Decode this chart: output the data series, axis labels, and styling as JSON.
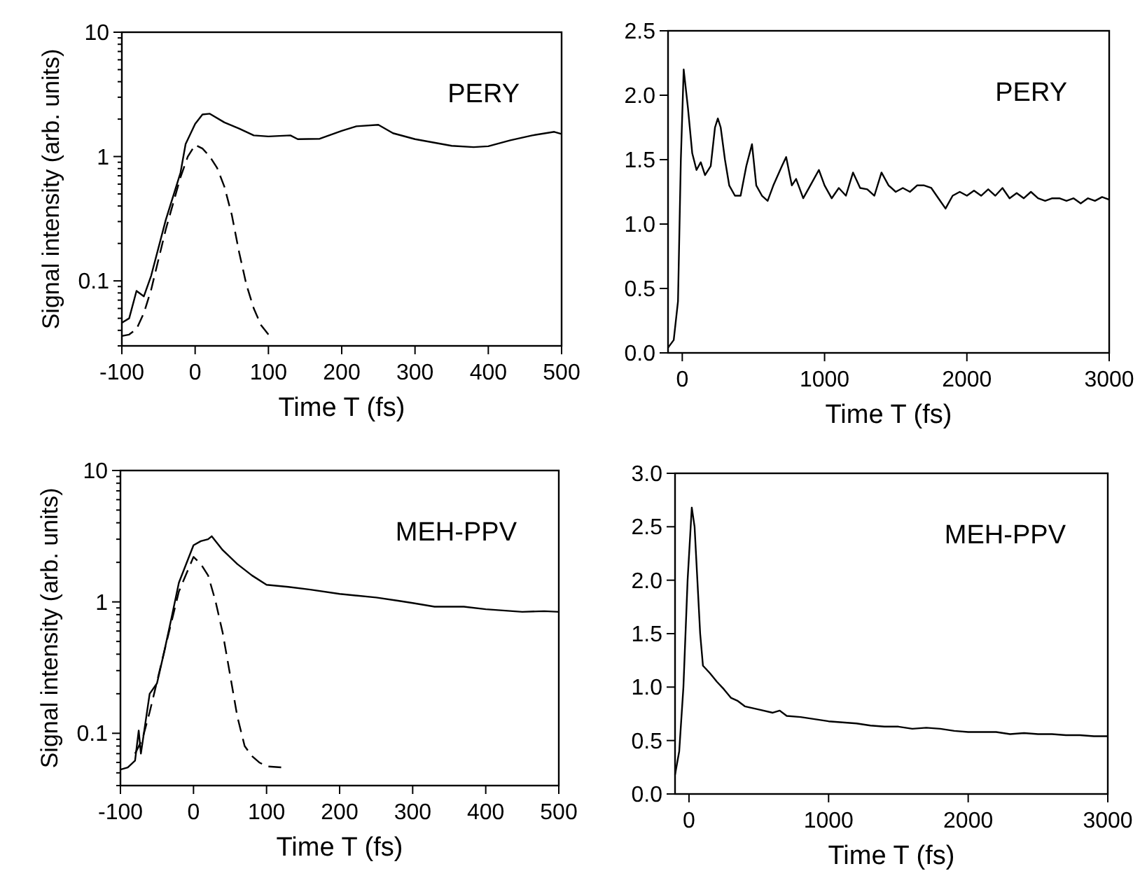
{
  "chart_data": [
    {
      "type": "line",
      "xlabel": "Time T (fs)",
      "ylabel": "Signal intensity  (arb. units)",
      "annotations": [
        "PERY"
      ],
      "log": "y",
      "xlim": [
        -100,
        500
      ],
      "xticks": [
        -100,
        0,
        100,
        200,
        300,
        400,
        500
      ],
      "ylim": [
        0.03,
        10
      ],
      "yticks": [
        {
          "value": 0.03,
          "label": null
        },
        {
          "value": 0.04,
          "label": null
        },
        {
          "value": 0.05,
          "label": null
        },
        {
          "value": 0.06,
          "label": null
        },
        {
          "value": 0.07,
          "label": null
        },
        {
          "value": 0.08,
          "label": null
        },
        {
          "value": 0.09,
          "label": null
        },
        0.1,
        {
          "value": 0.2,
          "label": null
        },
        {
          "value": 0.3,
          "label": null
        },
        {
          "value": 0.4,
          "label": null
        },
        {
          "value": 0.5,
          "label": null
        },
        {
          "value": 0.6,
          "label": null
        },
        {
          "value": 0.7,
          "label": null
        },
        {
          "value": 0.8,
          "label": null
        },
        {
          "value": 0.9,
          "label": null
        },
        1,
        {
          "value": 2,
          "label": null
        },
        {
          "value": 3,
          "label": null
        },
        {
          "value": 4,
          "label": null
        },
        {
          "value": 5,
          "label": null
        },
        {
          "value": 6,
          "label": null
        },
        {
          "value": 7,
          "label": null
        },
        {
          "value": 8,
          "label": null
        },
        {
          "value": 9,
          "label": null
        },
        10
      ],
      "series": [
        {
          "color": "#000000",
          "line_style": "solid",
          "x": [
            -100,
            -90,
            -80,
            -70,
            -60,
            -40,
            -20,
            -13,
            0,
            10,
            20,
            40,
            60,
            80,
            100,
            130,
            140,
            170,
            200,
            220,
            250,
            270,
            300,
            350,
            380,
            400,
            430,
            460,
            490,
            500
          ],
          "values": [
            0.046,
            0.05,
            0.083,
            0.075,
            0.11,
            0.31,
            0.74,
            1.26,
            1.83,
            2.18,
            2.21,
            1.88,
            1.68,
            1.48,
            1.45,
            1.48,
            1.38,
            1.39,
            1.61,
            1.75,
            1.8,
            1.54,
            1.38,
            1.22,
            1.19,
            1.21,
            1.35,
            1.48,
            1.58,
            1.52
          ]
        },
        {
          "color": "#000000",
          "line_style": "dashed",
          "x": [
            -100,
            -90,
            -80,
            -70,
            -60,
            -40,
            -20,
            -10,
            0,
            10,
            20,
            30,
            40,
            50,
            60,
            70,
            80,
            90,
            100
          ],
          "values": [
            0.036,
            0.037,
            0.041,
            0.055,
            0.085,
            0.26,
            0.68,
            1.0,
            1.24,
            1.16,
            1.0,
            0.81,
            0.57,
            0.34,
            0.17,
            0.093,
            0.06,
            0.044,
            0.037
          ]
        }
      ]
    },
    {
      "type": "line",
      "xlabel": "Time T (fs)",
      "annotations": [
        "PERY"
      ],
      "xlim": [
        -100,
        3000
      ],
      "xticks": [
        0,
        1000,
        2000,
        3000
      ],
      "ylim": [
        0,
        2.5
      ],
      "yticks": [
        {
          "value": 0,
          "label": "0.0"
        },
        {
          "value": 0.5,
          "label": "0.5"
        },
        {
          "value": 1,
          "label": "1.0"
        },
        {
          "value": 1.5,
          "label": "1.5"
        },
        {
          "value": 2,
          "label": "2.0"
        },
        {
          "value": 2.5,
          "label": "2.5"
        }
      ],
      "series": [
        {
          "color": "#000000",
          "line_style": "solid",
          "x": [
            -100,
            -60,
            -30,
            -10,
            10,
            40,
            70,
            100,
            130,
            160,
            200,
            230,
            250,
            270,
            300,
            330,
            370,
            410,
            450,
            490,
            520,
            560,
            600,
            640,
            700,
            730,
            770,
            800,
            850,
            900,
            960,
            1000,
            1050,
            1100,
            1150,
            1200,
            1250,
            1300,
            1350,
            1400,
            1450,
            1500,
            1550,
            1600,
            1650,
            1700,
            1750,
            1800,
            1850,
            1900,
            1950,
            2000,
            2050,
            2100,
            2150,
            2200,
            2250,
            2300,
            2350,
            2400,
            2450,
            2500,
            2550,
            2600,
            2650,
            2700,
            2750,
            2800,
            2850,
            2900,
            2950,
            3000
          ],
          "values": [
            0.04,
            0.1,
            0.4,
            1.5,
            2.2,
            1.9,
            1.55,
            1.42,
            1.48,
            1.38,
            1.45,
            1.75,
            1.82,
            1.75,
            1.5,
            1.3,
            1.22,
            1.22,
            1.45,
            1.62,
            1.3,
            1.22,
            1.18,
            1.3,
            1.45,
            1.52,
            1.3,
            1.35,
            1.2,
            1.3,
            1.42,
            1.3,
            1.2,
            1.28,
            1.22,
            1.4,
            1.28,
            1.27,
            1.22,
            1.4,
            1.3,
            1.25,
            1.28,
            1.25,
            1.3,
            1.3,
            1.28,
            1.2,
            1.12,
            1.22,
            1.25,
            1.22,
            1.26,
            1.22,
            1.27,
            1.22,
            1.28,
            1.2,
            1.24,
            1.2,
            1.25,
            1.2,
            1.18,
            1.2,
            1.2,
            1.18,
            1.2,
            1.16,
            1.2,
            1.18,
            1.21,
            1.19
          ]
        }
      ]
    },
    {
      "type": "line",
      "xlabel": "Time T (fs)",
      "ylabel": "Signal intensity  (arb. units)",
      "annotations": [
        "MEH-PPV"
      ],
      "log": "y",
      "xlim": [
        -100,
        500
      ],
      "xticks": [
        -100,
        0,
        100,
        200,
        300,
        400,
        500
      ],
      "ylim": [
        0.04,
        10
      ],
      "yticks": [
        {
          "value": 0.04,
          "label": null
        },
        {
          "value": 0.05,
          "label": null
        },
        {
          "value": 0.06,
          "label": null
        },
        {
          "value": 0.07,
          "label": null
        },
        {
          "value": 0.08,
          "label": null
        },
        {
          "value": 0.09,
          "label": null
        },
        0.1,
        {
          "value": 0.2,
          "label": null
        },
        {
          "value": 0.3,
          "label": null
        },
        {
          "value": 0.4,
          "label": null
        },
        {
          "value": 0.5,
          "label": null
        },
        {
          "value": 0.6,
          "label": null
        },
        {
          "value": 0.7,
          "label": null
        },
        {
          "value": 0.8,
          "label": null
        },
        {
          "value": 0.9,
          "label": null
        },
        1,
        {
          "value": 2,
          "label": null
        },
        {
          "value": 3,
          "label": null
        },
        {
          "value": 4,
          "label": null
        },
        {
          "value": 5,
          "label": null
        },
        {
          "value": 6,
          "label": null
        },
        {
          "value": 7,
          "label": null
        },
        {
          "value": 8,
          "label": null
        },
        {
          "value": 9,
          "label": null
        },
        10
      ],
      "series": [
        {
          "color": "#000000",
          "line_style": "solid",
          "x": [
            -100,
            -90,
            -80,
            -75,
            -72,
            -60,
            -50,
            -40,
            -30,
            -20,
            0,
            10,
            20,
            25,
            40,
            60,
            80,
            100,
            130,
            160,
            200,
            250,
            280,
            300,
            330,
            370,
            400,
            450,
            480,
            500
          ],
          "values": [
            0.053,
            0.055,
            0.062,
            0.105,
            0.07,
            0.2,
            0.24,
            0.42,
            0.76,
            1.4,
            2.7,
            2.9,
            3.0,
            3.16,
            2.48,
            1.94,
            1.59,
            1.35,
            1.3,
            1.24,
            1.15,
            1.08,
            1.02,
            0.98,
            0.92,
            0.92,
            0.88,
            0.84,
            0.85,
            0.84
          ]
        },
        {
          "color": "#000000",
          "line_style": "dashed",
          "x": [
            -80,
            -70,
            -60,
            -40,
            -20,
            0,
            10,
            20,
            30,
            40,
            50,
            60,
            70,
            80,
            90,
            100,
            120
          ],
          "values": [
            0.07,
            0.09,
            0.145,
            0.42,
            1.2,
            2.2,
            1.94,
            1.59,
            1.02,
            0.58,
            0.28,
            0.134,
            0.08,
            0.067,
            0.06,
            0.056,
            0.055
          ]
        }
      ]
    },
    {
      "type": "line",
      "xlabel": "Time T (fs)",
      "annotations": [
        "MEH-PPV"
      ],
      "xlim": [
        -100,
        3000
      ],
      "xticks": [
        0,
        1000,
        2000,
        3000
      ],
      "ylim": [
        0,
        3
      ],
      "yticks": [
        {
          "value": 0,
          "label": "0.0"
        },
        {
          "value": 0.5,
          "label": "0.5"
        },
        {
          "value": 1,
          "label": "1.0"
        },
        {
          "value": 1.5,
          "label": "1.5"
        },
        {
          "value": 2,
          "label": "2.0"
        },
        {
          "value": 2.5,
          "label": "2.5"
        },
        {
          "value": 3,
          "label": "3.0"
        }
      ],
      "series": [
        {
          "color": "#000000",
          "line_style": "solid",
          "x": [
            -100,
            -70,
            -40,
            -10,
            20,
            40,
            60,
            80,
            100,
            150,
            200,
            250,
            300,
            350,
            400,
            500,
            600,
            650,
            700,
            800,
            900,
            1000,
            1100,
            1200,
            1300,
            1400,
            1500,
            1600,
            1700,
            1800,
            1900,
            2000,
            2100,
            2200,
            2300,
            2400,
            2500,
            2600,
            2700,
            2800,
            2900,
            3000
          ],
          "values": [
            0.18,
            0.4,
            1.0,
            2.0,
            2.68,
            2.5,
            2.0,
            1.5,
            1.2,
            1.13,
            1.05,
            0.98,
            0.9,
            0.87,
            0.82,
            0.79,
            0.76,
            0.78,
            0.73,
            0.72,
            0.7,
            0.68,
            0.67,
            0.66,
            0.64,
            0.63,
            0.63,
            0.61,
            0.62,
            0.61,
            0.59,
            0.58,
            0.58,
            0.58,
            0.56,
            0.57,
            0.56,
            0.56,
            0.55,
            0.55,
            0.54,
            0.54
          ]
        }
      ]
    }
  ]
}
